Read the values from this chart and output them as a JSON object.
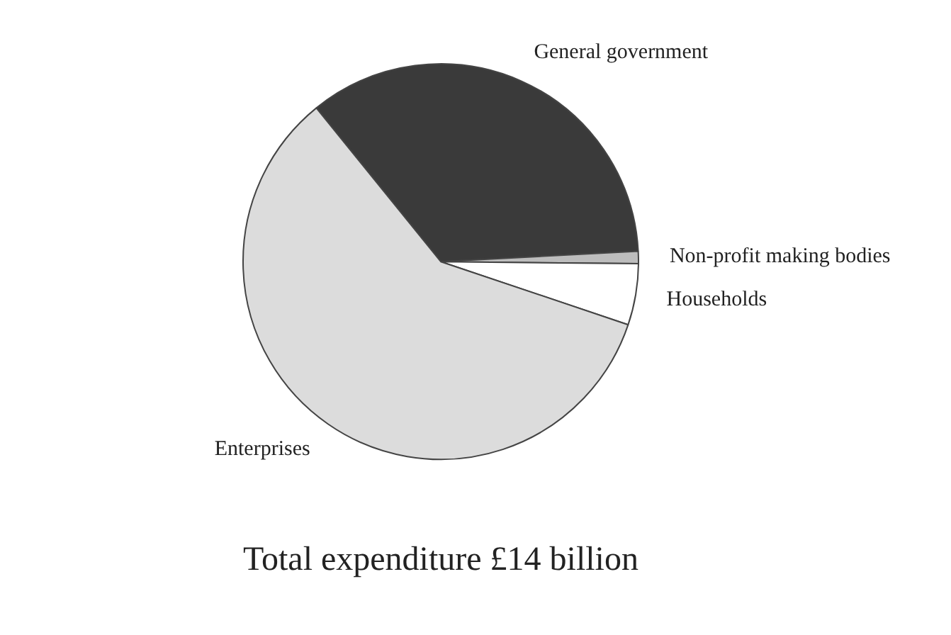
{
  "chart_data": {
    "type": "pie",
    "title": "Total expenditure £14 billion",
    "categories": [
      "General government",
      "Non-profit making bodies",
      "Households",
      "Enterprises"
    ],
    "values": [
      35,
      1,
      5,
      59
    ],
    "colors": [
      "#3a3a3a",
      "#bdbdbd",
      "#ffffff",
      "#dcdcdc"
    ],
    "legend": false
  }
}
